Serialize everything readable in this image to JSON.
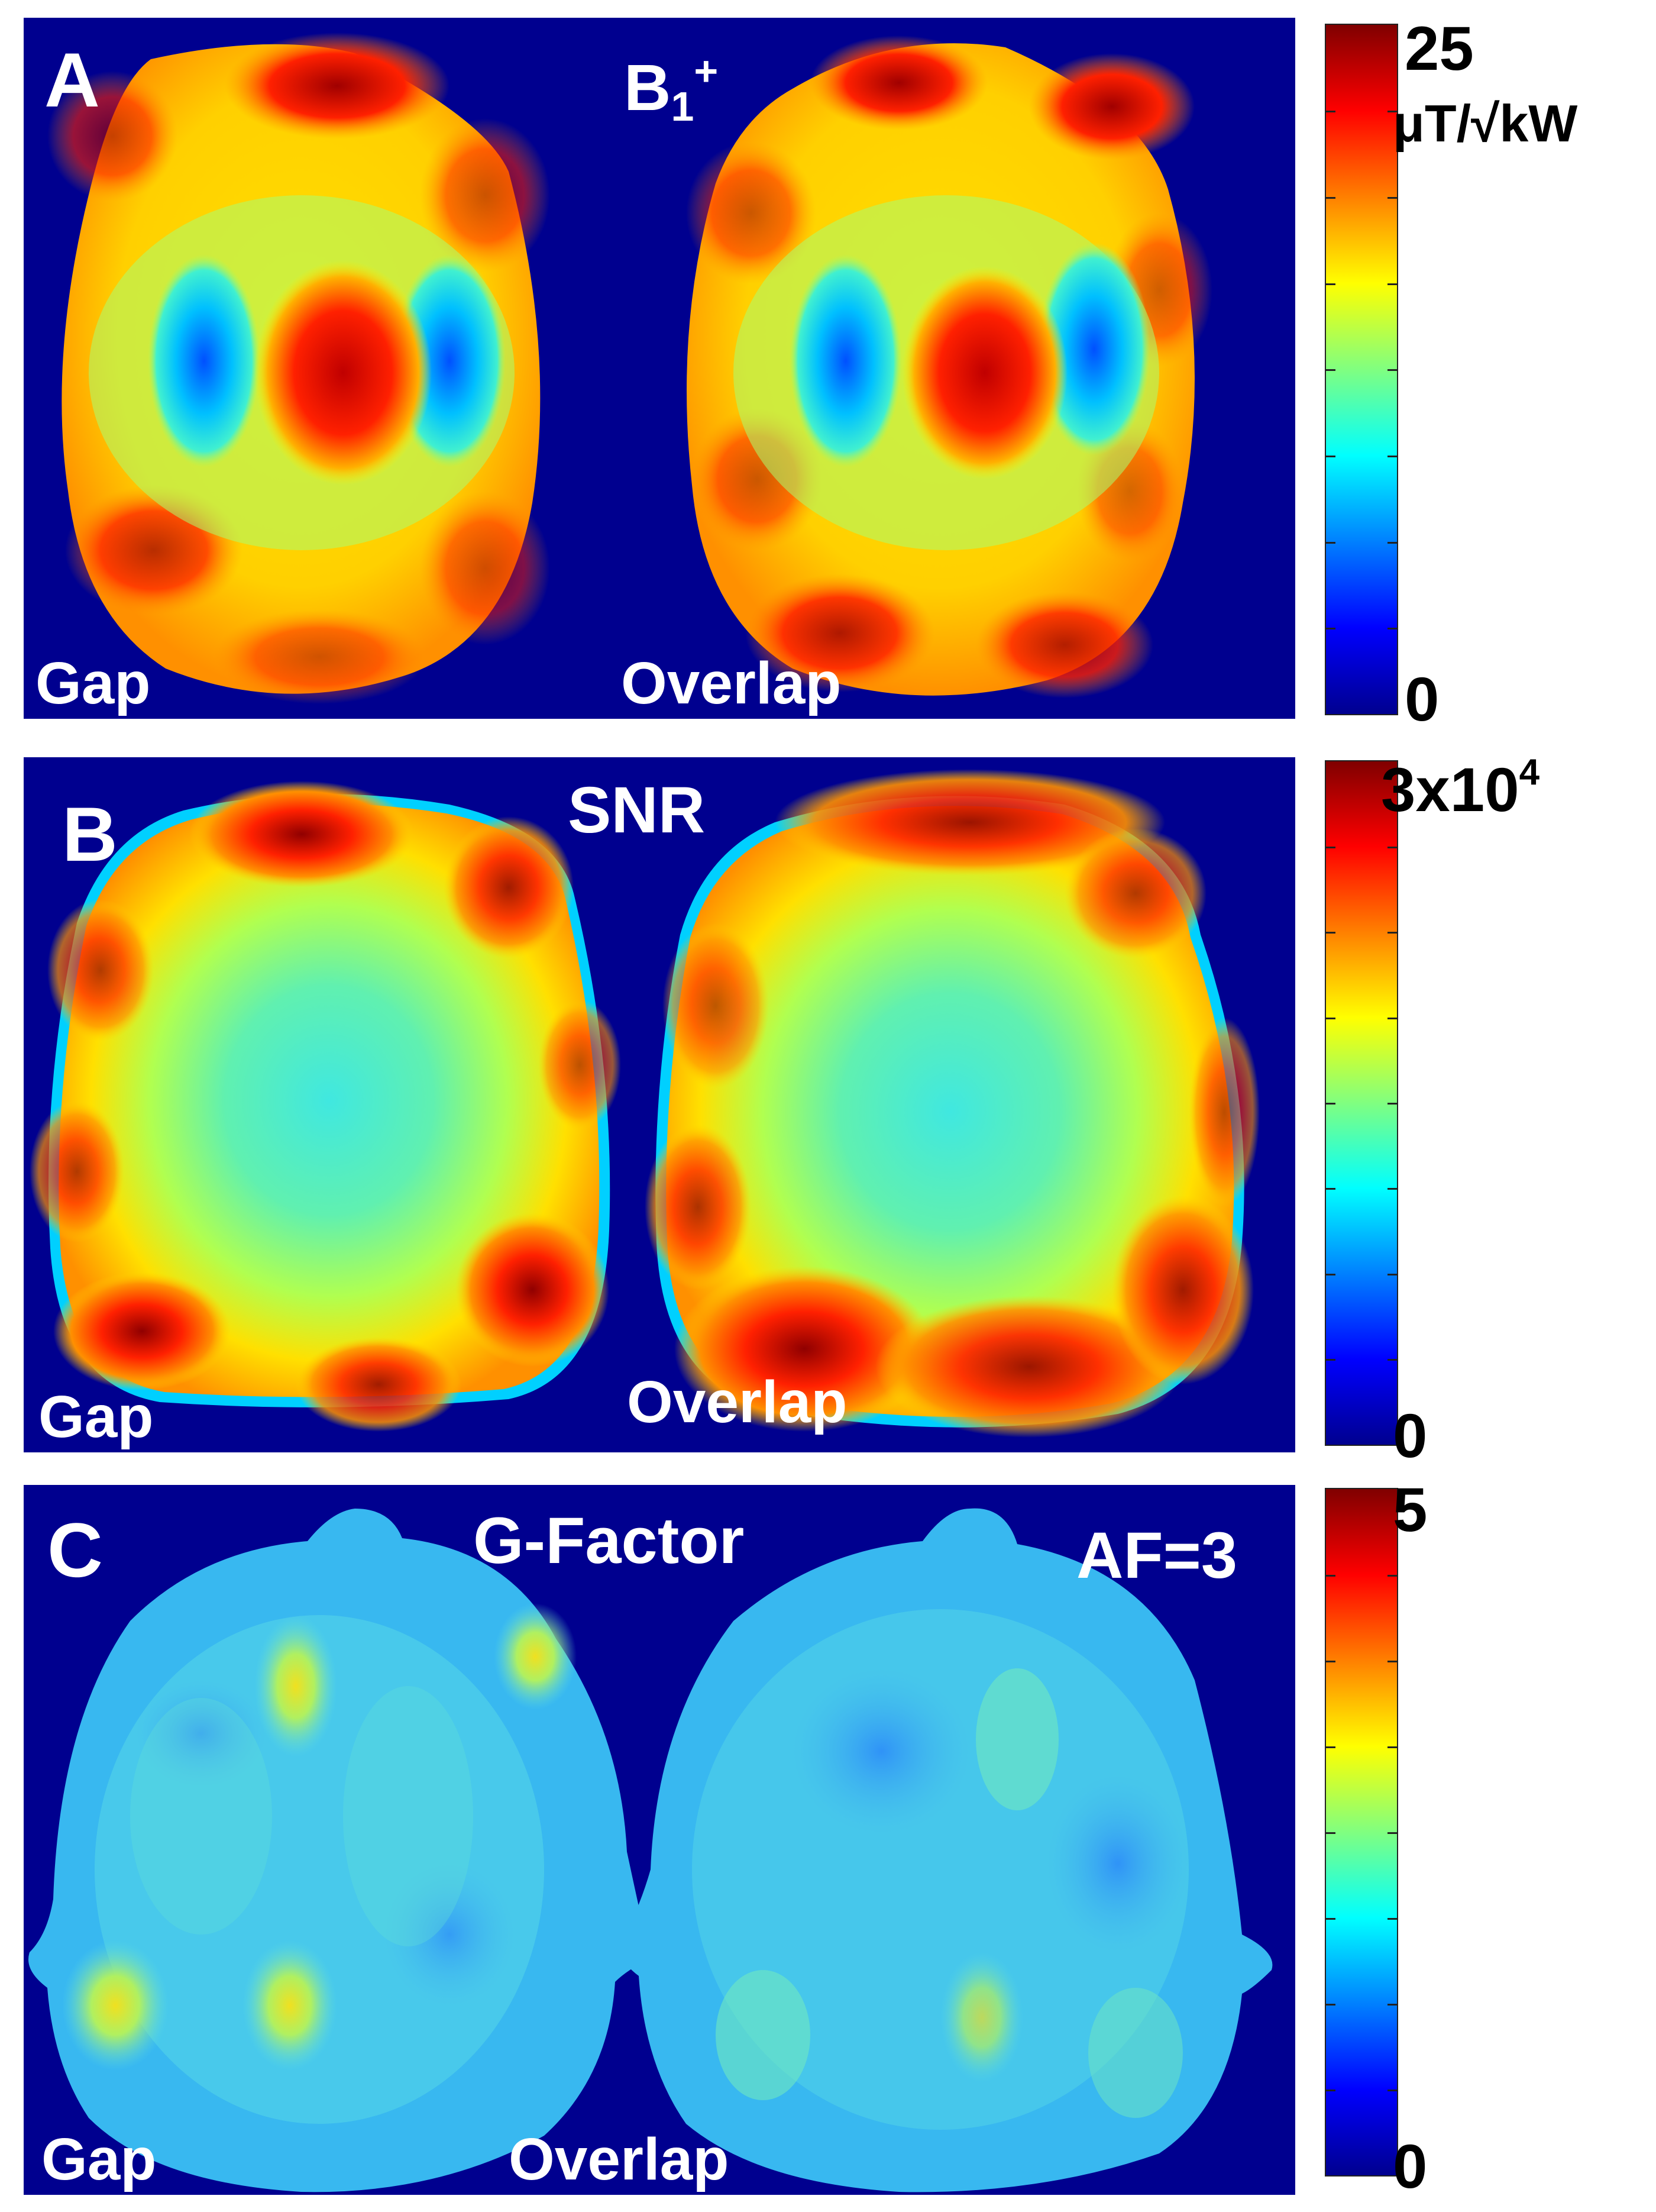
{
  "panels": [
    {
      "letter": "A",
      "title_base": "B",
      "title_sub": "1",
      "title_sup": "+",
      "left_label": "Gap",
      "right_label": "Overlap",
      "colorbar": {
        "max": "25",
        "unit": "μT/√kW",
        "min": "0"
      }
    },
    {
      "letter": "B",
      "title": "SNR",
      "left_label": "Gap",
      "right_label": "Overlap",
      "colorbar": {
        "max_base": "3x10",
        "max_exp": "4",
        "min": "0"
      }
    },
    {
      "letter": "C",
      "title": "G-Factor",
      "af_label": "AF=3",
      "left_label": "Gap",
      "right_label": "Overlap",
      "colorbar": {
        "max": "5",
        "min": "0"
      }
    }
  ],
  "colormap": "jet",
  "colors": {
    "background": "#00008f",
    "dark_red": "#8b0000",
    "red": "#ff2000",
    "orange": "#ff8c00",
    "yellow": "#ffee00",
    "cyan": "#20e0e0",
    "light_blue": "#40c8f0",
    "blue": "#1050ff"
  }
}
